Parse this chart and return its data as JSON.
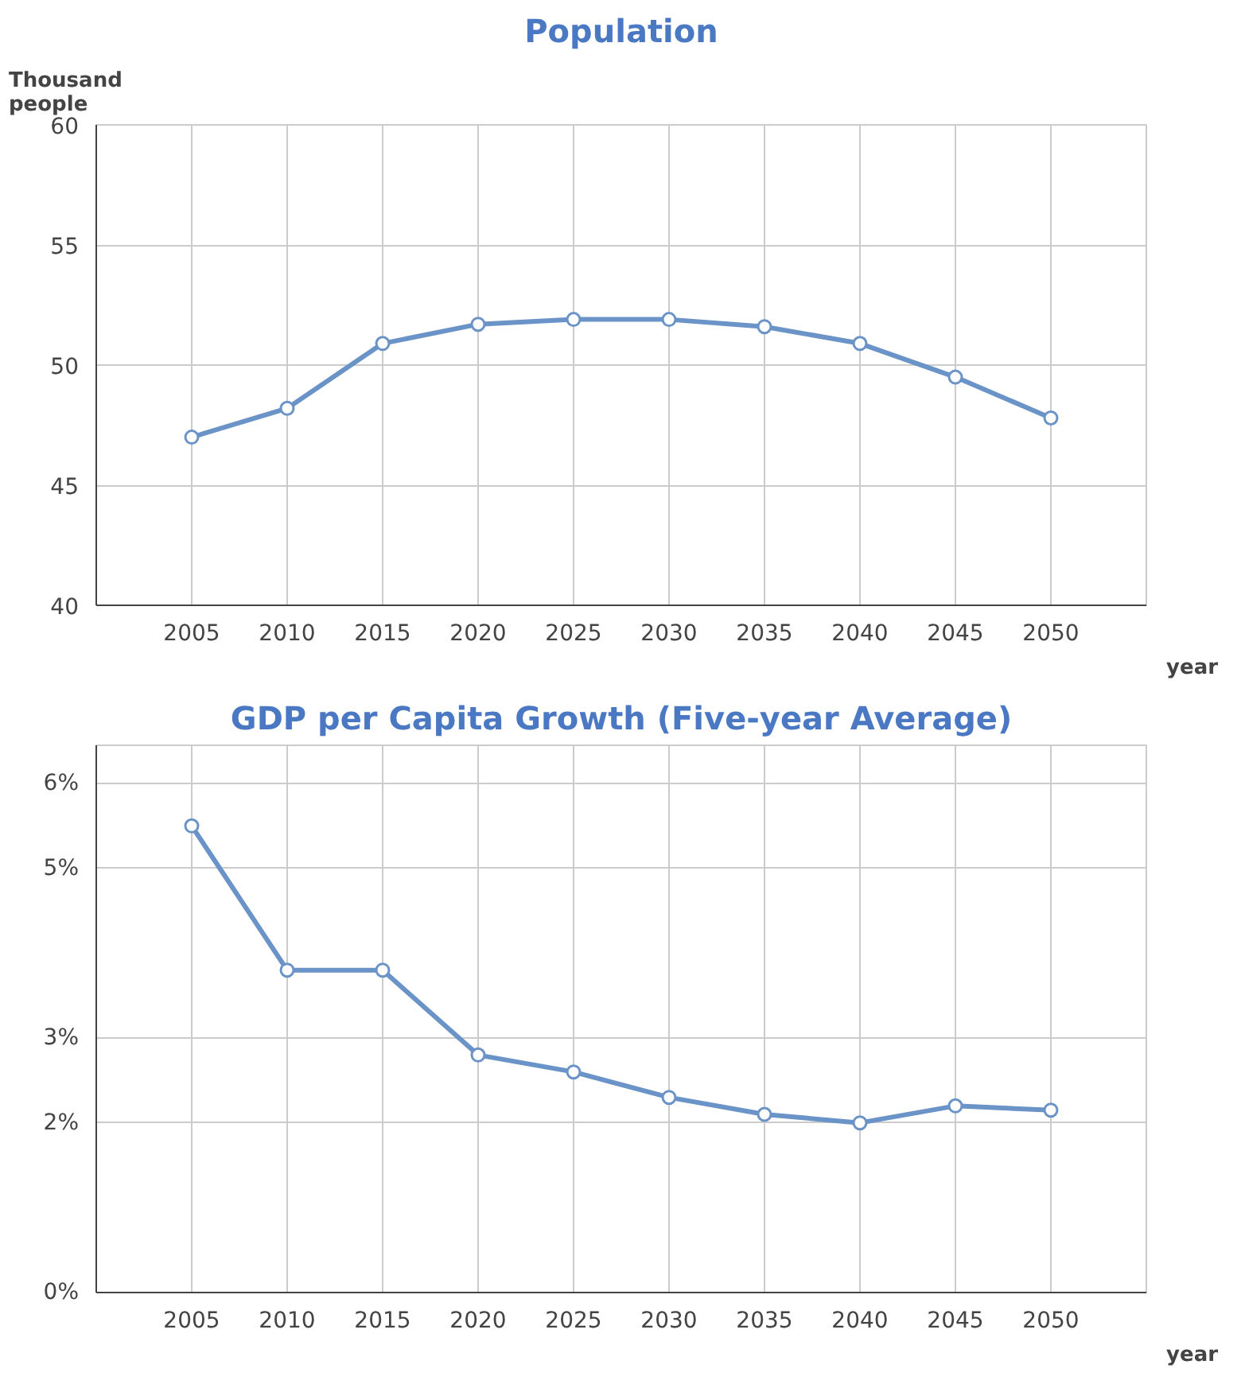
{
  "chart_data": [
    {
      "type": "line",
      "title": "Population",
      "ylabel": "Thousand\npeople",
      "xlabel": "year",
      "categories": [
        "2005",
        "2010",
        "2015",
        "2020",
        "2025",
        "2030",
        "2035",
        "2040",
        "2045",
        "2050"
      ],
      "series": [
        {
          "color": "#6a93c8",
          "values": [
            47.0,
            48.2,
            50.9,
            51.7,
            51.9,
            51.9,
            51.6,
            50.9,
            49.5,
            47.8
          ]
        }
      ],
      "ylim": [
        40,
        60
      ],
      "yticks": [
        40,
        45,
        50,
        55,
        60
      ],
      "grid": true,
      "marker": "circle",
      "line_style": "solid"
    },
    {
      "type": "line",
      "title": "GDP per Capita Growth (Five-year Average)",
      "xlabel": "year",
      "categories": [
        "2005",
        "2010",
        "2015",
        "2020",
        "2025",
        "2030",
        "2035",
        "2040",
        "2045",
        "2050"
      ],
      "series": [
        {
          "color": "#6a93c8",
          "values": [
            5.5,
            3.8,
            3.8,
            2.8,
            2.6,
            2.3,
            2.1,
            2.0,
            2.2,
            2.15
          ]
        }
      ],
      "ylim": [
        0,
        6.45
      ],
      "yticks": [
        {
          "value": 0,
          "label": "0%"
        },
        {
          "value": 2,
          "label": "2%"
        },
        {
          "value": 3,
          "label": "3%"
        },
        {
          "value": 5,
          "label": "5%"
        },
        {
          "value": 6,
          "label": "6%"
        }
      ],
      "grid": true,
      "marker": "circle",
      "line_style": "solid"
    }
  ]
}
